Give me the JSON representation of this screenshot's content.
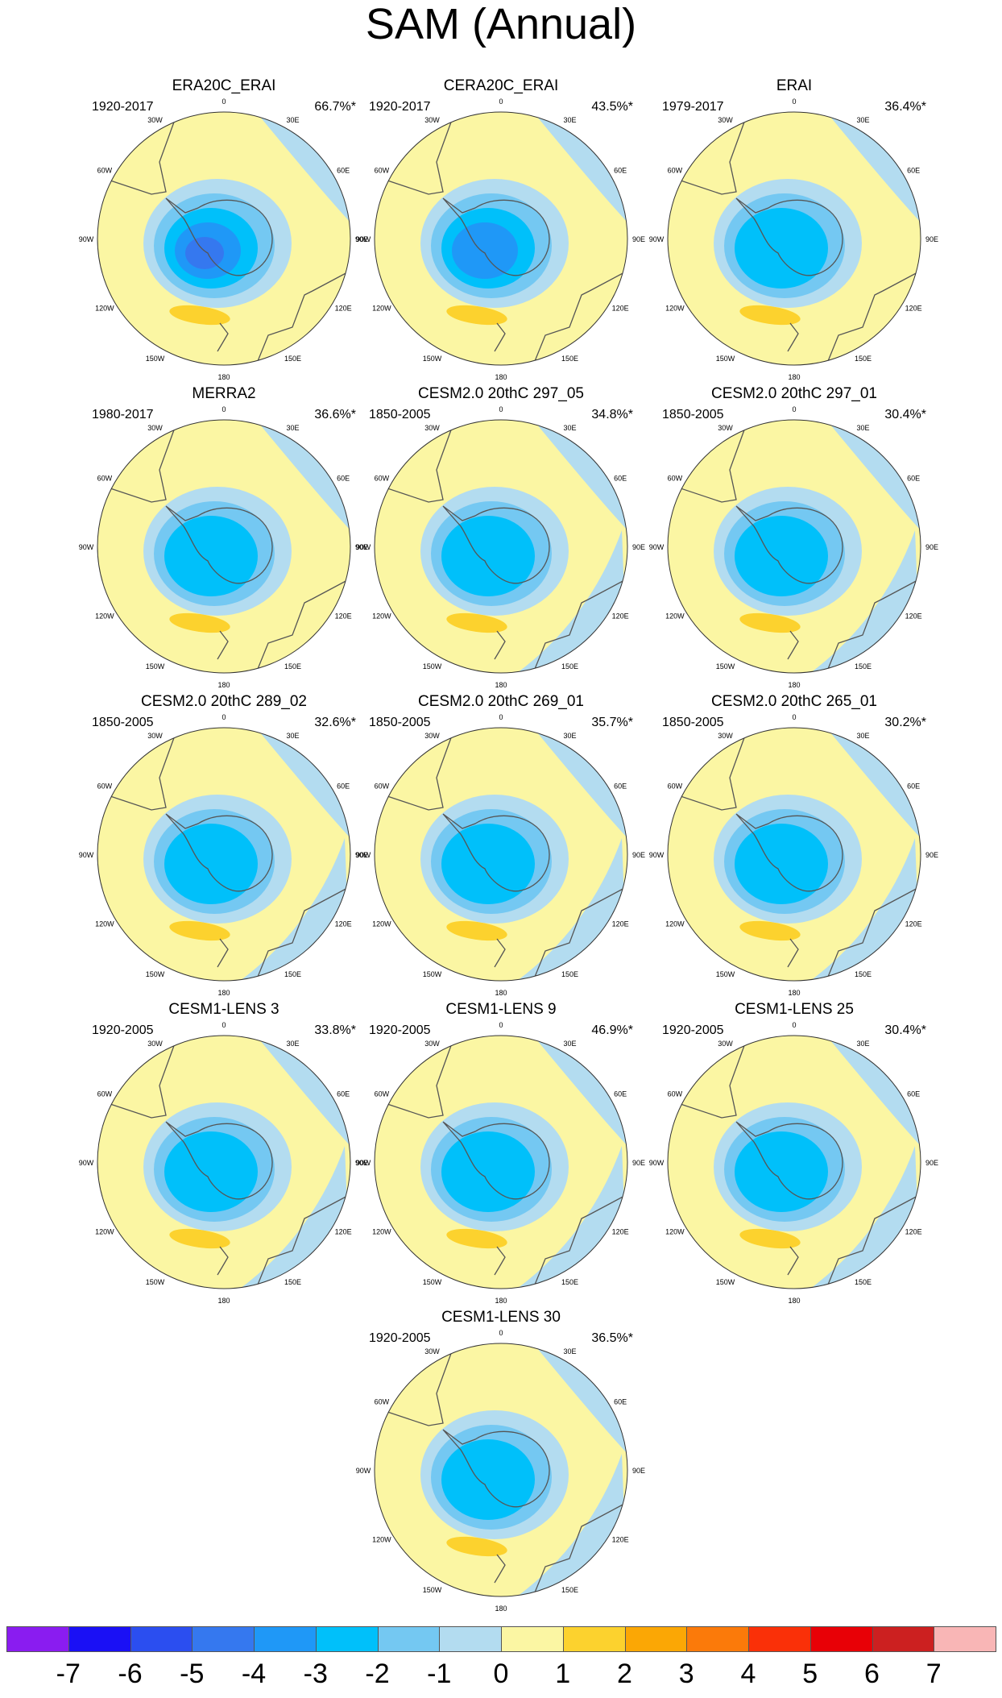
{
  "title": "SAM (Annual)",
  "panels": [
    {
      "label": "ERA20C_ERAI",
      "period": "1920-2017",
      "variance": "66.7%*",
      "min_level": -5
    },
    {
      "label": "CERA20C_ERAI",
      "period": "1920-2017",
      "variance": "43.5%*",
      "min_level": -4
    },
    {
      "label": "ERAI",
      "period": "1979-2017",
      "variance": "36.4%*",
      "min_level": -3
    },
    {
      "label": "MERRA2",
      "period": "1980-2017",
      "variance": "36.6%*",
      "min_level": -3
    },
    {
      "label": "CESM2.0 20thC 297_05",
      "period": "1850-2005",
      "variance": "34.8%*",
      "min_level": -3
    },
    {
      "label": "CESM2.0 20thC 297_01",
      "period": "1850-2005",
      "variance": "30.4%*",
      "min_level": -3
    },
    {
      "label": "CESM2.0 20thC 289_02",
      "period": "1850-2005",
      "variance": "32.6%*",
      "min_level": -3
    },
    {
      "label": "CESM2.0 20thC 269_01",
      "period": "1850-2005",
      "variance": "35.7%*",
      "min_level": -3
    },
    {
      "label": "CESM2.0 20thC 265_01",
      "period": "1850-2005",
      "variance": "30.2%*",
      "min_level": -3
    },
    {
      "label": "CESM1-LENS 3",
      "period": "1920-2005",
      "variance": "33.8%*",
      "min_level": -3
    },
    {
      "label": "CESM1-LENS 9",
      "period": "1920-2005",
      "variance": "46.9%*",
      "min_level": -3
    },
    {
      "label": "CESM1-LENS 25",
      "period": "1920-2005",
      "variance": "30.4%*",
      "min_level": -3
    },
    {
      "label": "CESM1-LENS 30",
      "period": "1920-2005",
      "variance": "36.5%*",
      "min_level": -3
    }
  ],
  "map_labels": {
    "lon": [
      "0",
      "30E",
      "60E",
      "90E",
      "120E",
      "150E",
      "180",
      "150W",
      "120W",
      "90W",
      "60W",
      "30W"
    ]
  },
  "colorbar": {
    "levels": [
      -7,
      -6,
      -5,
      -4,
      -3,
      -2,
      -1,
      0,
      1,
      2,
      3,
      4,
      5,
      6,
      7
    ],
    "tick_labels": [
      "-7",
      "-6",
      "-5",
      "-4",
      "-3",
      "-2",
      "-1",
      "0",
      "1",
      "2",
      "3",
      "4",
      "5",
      "6",
      "7"
    ],
    "colors": [
      "#8a1cf0",
      "#1a10f5",
      "#2b4ef0",
      "#3578ef",
      "#1f98f7",
      "#00c0fa",
      "#74c8f2",
      "#b3dcf0",
      "#fbf6a3",
      "#fcd22e",
      "#fba705",
      "#fb7a0a",
      "#fa3008",
      "#e80006",
      "#cc2020",
      "#f9b6b6"
    ]
  },
  "colors": {
    "negative_1": "#b3dcf0",
    "negative_2": "#74c8f2",
    "negative_3": "#00c0fa",
    "negative_4": "#1f98f7",
    "negative_5": "#3578ef",
    "positive_1": "#fbf6a3",
    "positive_2": "#fcd22e",
    "coast": "#555555"
  }
}
